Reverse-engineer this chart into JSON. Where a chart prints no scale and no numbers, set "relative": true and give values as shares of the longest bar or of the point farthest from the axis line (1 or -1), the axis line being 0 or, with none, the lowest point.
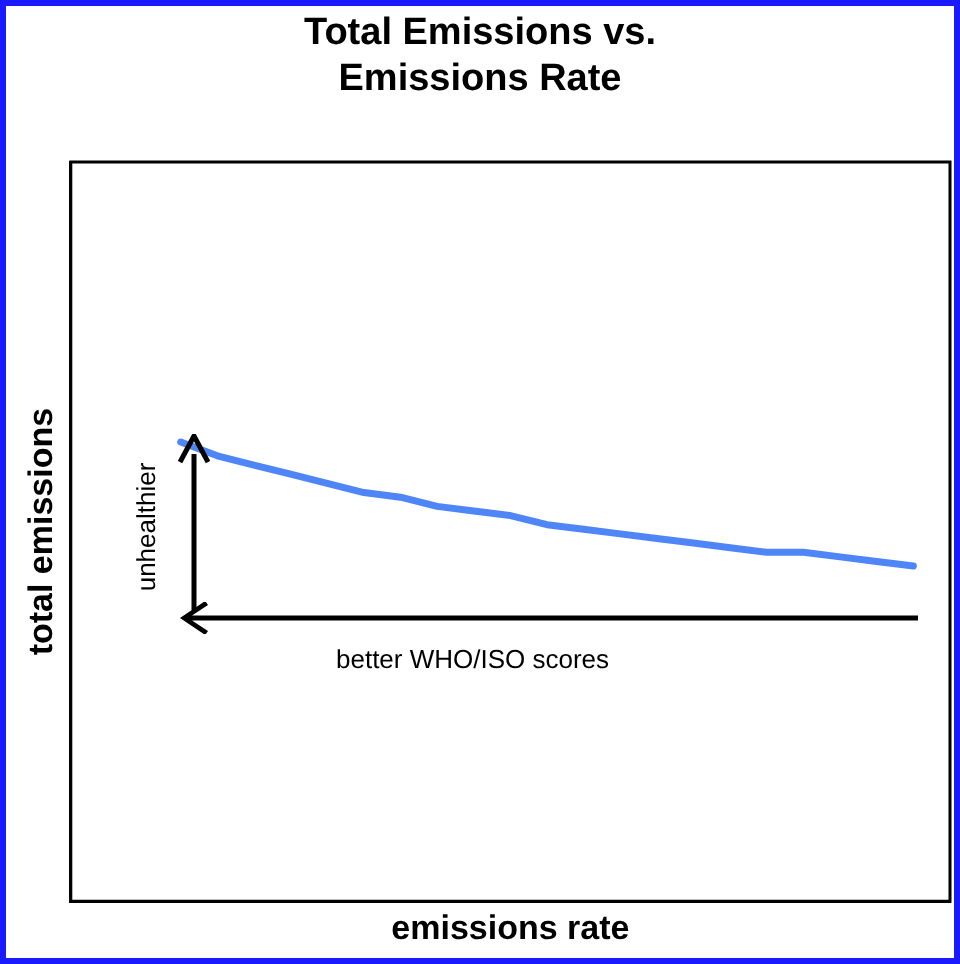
{
  "chart_data": {
    "type": "line",
    "title": "Total Emissions vs. Emissions Rate",
    "xlabel": "emissions rate",
    "ylabel": "total emissions",
    "relative": true,
    "categories": [
      null,
      null,
      null,
      null,
      null,
      null,
      null,
      null,
      null,
      null,
      null,
      null,
      null,
      null,
      null,
      null,
      null,
      null,
      null,
      null,
      null,
      null,
      null,
      null,
      null
    ],
    "series": [
      {
        "color": "#4f86f7",
        "values": [
          null,
          null,
          null,
          1.0,
          0.97,
          0.95,
          0.93,
          0.91,
          0.89,
          0.88,
          0.86,
          0.85,
          0.84,
          0.82,
          0.81,
          0.8,
          0.79,
          0.78,
          0.77,
          0.76,
          0.76,
          0.75,
          0.74,
          0.73,
          null
        ]
      }
    ],
    "annotations": [
      "unhealthier",
      "better WHO/ISO scores"
    ],
    "grid": false,
    "legend": false,
    "marker": "none",
    "line_style": "solid"
  }
}
